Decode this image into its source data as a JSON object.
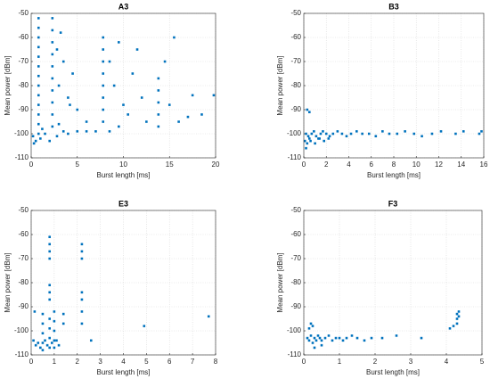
{
  "chart_data": [
    {
      "type": "scatter",
      "title": "A3",
      "xlabel": "Burst length [ms]",
      "ylabel": "Mean power [dBm]",
      "xlim": [
        0,
        20
      ],
      "xticks": [
        0,
        5,
        10,
        15,
        20
      ],
      "ylim": [
        -110,
        -50
      ],
      "yticks": [
        -110,
        -100,
        -90,
        -80,
        -70,
        -60,
        -50
      ],
      "grid": true,
      "series": [
        {
          "color": "#0072bd",
          "x": [
            0.8,
            0.8,
            0.8,
            0.8,
            0.8,
            0.8,
            0.8,
            0.8,
            0.8,
            0.8,
            0.8,
            0.8,
            0.8,
            2.3,
            2.3,
            2.3,
            2.3,
            2.3,
            2.3,
            2.3,
            2.3,
            2.3,
            2.3,
            7.8,
            7.8,
            7.8,
            7.8,
            7.8,
            7.8,
            7.8,
            7.8,
            13.8,
            13.8,
            13.8,
            13.8,
            13.8,
            0.2,
            0.5,
            1,
            1.5,
            2,
            2.8,
            3.5,
            4,
            5,
            6,
            7,
            8.5,
            9.5,
            0.3,
            1.2,
            3,
            3,
            3.5,
            4,
            2.8,
            5,
            9,
            10,
            11,
            9.5,
            12,
            14.5,
            15,
            16,
            17,
            18.5,
            19.8,
            15.5,
            17.5,
            12.5,
            10.5,
            8.5,
            11.5,
            4.5,
            6,
            3.2,
            4.2
          ],
          "values": [
            -52,
            -56,
            -60,
            -64,
            -68,
            -72,
            -76,
            -80,
            -84,
            -88,
            -92,
            -96,
            -100,
            -52,
            -57,
            -62,
            -67,
            -72,
            -77,
            -82,
            -87,
            -92,
            -97,
            -60,
            -65,
            -70,
            -75,
            -80,
            -85,
            -90,
            -95,
            -77,
            -82,
            -87,
            -92,
            -97,
            -101,
            -103,
            -102,
            -100,
            -103,
            -101,
            -99,
            -100,
            -99,
            -99,
            -99,
            -99,
            -97,
            -104,
            -98,
            -96,
            -80,
            -70,
            -85,
            -65,
            -90,
            -80,
            -88,
            -75,
            -62,
            -85,
            -70,
            -88,
            -95,
            -93,
            -92,
            -84,
            -60,
            -84,
            -95,
            -92,
            -70,
            -65,
            -75,
            -95,
            -58,
            -88
          ]
        }
      ]
    },
    {
      "type": "scatter",
      "title": "B3",
      "xlabel": "Burst length [ms]",
      "ylabel": "Mean power [dBm]",
      "xlim": [
        0,
        16
      ],
      "xticks": [
        0,
        2,
        4,
        6,
        8,
        10,
        12,
        14,
        16
      ],
      "ylim": [
        -110,
        -50
      ],
      "yticks": [
        -110,
        -100,
        -90,
        -80,
        -70,
        -60,
        -50
      ],
      "grid": true,
      "series": [
        {
          "color": "#0072bd",
          "x": [
            0.2,
            0.4,
            0.1,
            0.3,
            0.5,
            0.7,
            0.9,
            1.1,
            1.3,
            1.5,
            1.7,
            2,
            2.3,
            2.6,
            3,
            3.4,
            3.8,
            4.2,
            4.7,
            5.2,
            5.8,
            6.4,
            7,
            7.6,
            8.3,
            9,
            9.8,
            10.5,
            11.4,
            12.2,
            13.5,
            14.2,
            15.6,
            15.8,
            0.2,
            0.6,
            1,
            1.4,
            1.8,
            2.2,
            0.3,
            0.5
          ],
          "values": [
            -100,
            -101,
            -103,
            -104,
            -102,
            -100,
            -99,
            -101,
            -102,
            -100,
            -99,
            -100,
            -101,
            -100,
            -99,
            -100,
            -101,
            -100,
            -99,
            -100,
            -100,
            -101,
            -99,
            -100,
            -100,
            -99,
            -100,
            -101,
            -100,
            -99,
            -100,
            -99,
            -100,
            -99,
            -106,
            -103,
            -104,
            -102,
            -103,
            -102,
            -90,
            -91
          ]
        }
      ]
    },
    {
      "type": "scatter",
      "title": "E3",
      "xlabel": "Burst length [ms]",
      "ylabel": "Mean power [dBm]",
      "xlim": [
        0,
        8
      ],
      "xticks": [
        0,
        1,
        2,
        3,
        4,
        5,
        6,
        7,
        8
      ],
      "ylim": [
        -110,
        -50
      ],
      "yticks": [
        -110,
        -100,
        -90,
        -80,
        -70,
        -60,
        -50
      ],
      "grid": true,
      "series": [
        {
          "color": "#0072bd",
          "x": [
            0.8,
            0.8,
            0.8,
            0.8,
            0.8,
            0.8,
            0.8,
            0.8,
            0.8,
            0.8,
            0.8,
            0.5,
            0.5,
            0.5,
            0.5,
            0.5,
            1,
            1,
            1,
            1,
            1,
            1.4,
            1.4,
            2.2,
            2.2,
            2.2,
            2.2,
            2.2,
            2.2,
            2.2,
            0.1,
            0.2,
            0.3,
            0.4,
            0.6,
            0.7,
            0.9,
            1.1,
            1.2,
            0.15,
            2.6,
            4.9,
            7.7
          ],
          "values": [
            -61,
            -64,
            -67,
            -70,
            -81,
            -84,
            -87,
            -95,
            -99,
            -103,
            -107,
            -93,
            -97,
            -101,
            -105,
            -108,
            -92,
            -96,
            -100,
            -104,
            -107,
            -93,
            -97,
            -64,
            -67,
            -70,
            -84,
            -87,
            -92,
            -97,
            -104,
            -106,
            -105,
            -107,
            -104,
            -106,
            -105,
            -104,
            -106,
            -92,
            -104,
            -98,
            -94
          ]
        }
      ]
    },
    {
      "type": "scatter",
      "title": "F3",
      "xlabel": "Burst length [ms]",
      "ylabel": "Mean power [dBm]",
      "xlim": [
        0,
        5
      ],
      "xticks": [
        0,
        1,
        2,
        3,
        4,
        5
      ],
      "ylim": [
        -110,
        -50
      ],
      "yticks": [
        -110,
        -100,
        -90,
        -80,
        -70,
        -60,
        -50
      ],
      "grid": true,
      "series": [
        {
          "color": "#0072bd",
          "x": [
            0.1,
            0.15,
            0.2,
            0.25,
            0.3,
            0.35,
            0.4,
            0.45,
            0.5,
            0.6,
            0.7,
            0.8,
            0.9,
            1,
            1.1,
            1.2,
            1.35,
            1.5,
            1.7,
            1.9,
            2.2,
            2.6,
            3.3,
            0.2,
            0.25,
            0.15,
            4.3,
            4.3,
            4.3,
            4.35,
            4.35,
            4.1,
            4.2,
            0.3,
            0.5
          ],
          "values": [
            -103,
            -104,
            -102,
            -105,
            -103,
            -104,
            -102,
            -103,
            -104,
            -103,
            -102,
            -104,
            -103,
            -103,
            -104,
            -103,
            -102,
            -103,
            -104,
            -103,
            -103,
            -102,
            -103,
            -97,
            -98,
            -99,
            -93,
            -95,
            -97,
            -92,
            -94,
            -99,
            -98,
            -107,
            -106
          ]
        }
      ]
    }
  ]
}
